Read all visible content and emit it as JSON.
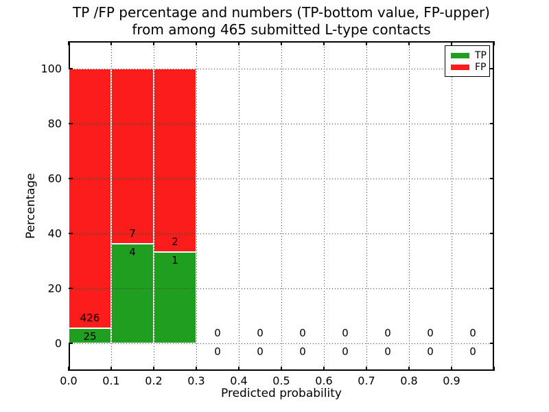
{
  "header": {
    "title_line1": "TP /FP percentage and numbers (TP-bottom value, FP-upper)",
    "title_line2": "from among 465 submitted L-type contacts"
  },
  "axes": {
    "ylabel": "Percentage",
    "xlabel": "Predicted probability",
    "y_ticks": [
      {
        "label": "0",
        "value": 0
      },
      {
        "label": "20",
        "value": 20
      },
      {
        "label": "40",
        "value": 40
      },
      {
        "label": "60",
        "value": 60
      },
      {
        "label": "80",
        "value": 80
      },
      {
        "label": "100",
        "value": 100
      }
    ],
    "x_ticks": [
      {
        "label": "0.0",
        "value": 0.0
      },
      {
        "label": "0.1",
        "value": 0.1
      },
      {
        "label": "0.2",
        "value": 0.2
      },
      {
        "label": "0.3",
        "value": 0.3
      },
      {
        "label": "0.4",
        "value": 0.4
      },
      {
        "label": "0.5",
        "value": 0.5
      },
      {
        "label": "0.6",
        "value": 0.6
      },
      {
        "label": "0.7",
        "value": 0.7
      },
      {
        "label": "0.8",
        "value": 0.8
      },
      {
        "label": "0.9",
        "value": 0.9
      }
    ]
  },
  "legend": {
    "items": [
      {
        "label": "TP",
        "color": "#1f9e1f"
      },
      {
        "label": "FP",
        "color": "#fc1c1c"
      }
    ]
  },
  "colors": {
    "tp": "#1f9e1f",
    "fp": "#fc1c1c",
    "grid": "#333333",
    "spine": "#000000",
    "background": "#ffffff"
  },
  "chart_data": {
    "type": "bar",
    "stacked": true,
    "unit": "percent of bin, heights normalized to 100",
    "title": "TP /FP percentage and numbers (TP-bottom value, FP-upper) from among 465 submitted L-type contacts",
    "xlabel": "Predicted probability",
    "ylabel": "Percentage",
    "xlim": [
      0.0,
      1.0
    ],
    "ylim": [
      -10,
      110
    ],
    "grid": true,
    "legend_position": "upper right",
    "bin_width": 0.1,
    "categories": [
      "0.0-0.1",
      "0.1-0.2",
      "0.2-0.3",
      "0.3-0.4",
      "0.4-0.5",
      "0.5-0.6",
      "0.6-0.7",
      "0.7-0.8",
      "0.8-0.9",
      "0.9-1.0"
    ],
    "bin_centers": [
      0.05,
      0.15,
      0.25,
      0.35,
      0.45,
      0.55,
      0.65,
      0.75,
      0.85,
      0.95
    ],
    "series": [
      {
        "name": "TP",
        "counts": [
          25,
          4,
          1,
          0,
          0,
          0,
          0,
          0,
          0,
          0
        ],
        "percent": [
          5.54,
          36.36,
          33.33,
          0,
          0,
          0,
          0,
          0,
          0,
          0
        ]
      },
      {
        "name": "FP",
        "counts": [
          426,
          7,
          2,
          0,
          0,
          0,
          0,
          0,
          0,
          0
        ],
        "percent": [
          94.46,
          63.64,
          66.67,
          0,
          0,
          0,
          0,
          0,
          0,
          0
        ]
      }
    ],
    "total_contacts": 465
  }
}
